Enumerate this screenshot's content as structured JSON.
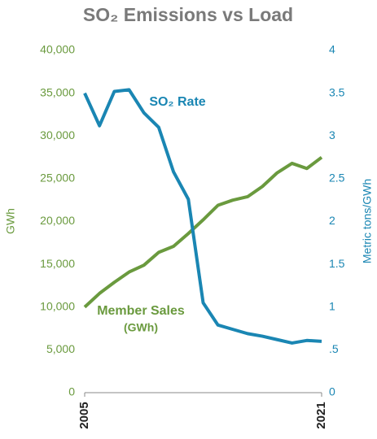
{
  "chart_data": {
    "type": "line",
    "title": "SO₂ Emissions vs Load",
    "y_label": "GWh",
    "y2_label": "Metric tons/GWh",
    "annotations": [
      "SO₂ Rate",
      "Member Sales",
      "(GWh)"
    ],
    "x": [
      2005,
      2006,
      2007,
      2008,
      2009,
      2010,
      2011,
      2012,
      2013,
      2014,
      2015,
      2016,
      2017,
      2018,
      2019,
      2020,
      2021
    ],
    "xlim": [
      2005,
      2021
    ],
    "xticks": [
      2005,
      2021
    ],
    "ylim": [
      0,
      40000
    ],
    "yticks": [
      0,
      {
        "value": 5000,
        "label": "5,000"
      },
      {
        "value": 10000,
        "label": "10,000"
      },
      {
        "value": 15000,
        "label": "15,000"
      },
      {
        "value": 20000,
        "label": "20,000"
      },
      {
        "value": 25000,
        "label": "25,000"
      },
      {
        "value": 30000,
        "label": "30,000"
      },
      {
        "value": 35000,
        "label": "35,000"
      },
      {
        "value": 40000,
        "label": "40,000"
      }
    ],
    "y2lim": [
      0,
      4
    ],
    "y2ticks": [
      0,
      {
        "value": 0.5,
        "label": ".5"
      },
      1,
      1.5,
      2,
      2.5,
      3,
      3.5,
      4
    ],
    "y_color": "#6a9a3e",
    "y2_color": "#1a86b3",
    "series": [
      {
        "name": "Member Sales",
        "color": "#6a9a3e",
        "values": [
          10000,
          11600,
          12900,
          14100,
          14900,
          16400,
          17100,
          18600,
          20200,
          21900,
          22500,
          22900,
          24100,
          25700,
          26800,
          26200,
          27500
        ]
      },
      {
        "name": "SO₂ Rate",
        "color": "#1a86b3",
        "axis": "y2",
        "values": [
          3.5,
          3.12,
          3.52,
          3.54,
          3.27,
          3.1,
          2.58,
          2.26,
          1.05,
          0.79,
          0.74,
          0.69,
          0.66,
          0.62,
          0.58,
          0.61,
          0.6
        ]
      }
    ]
  }
}
